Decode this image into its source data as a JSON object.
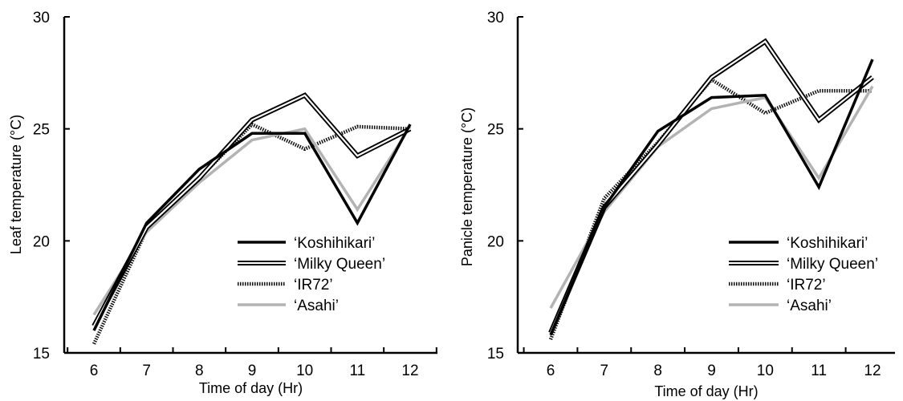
{
  "chart_data": [
    {
      "type": "line",
      "title": "",
      "xlabel": "Time of day (Hr)",
      "ylabel": "Leaf temperature (°C)",
      "x": [
        6,
        7,
        8,
        9,
        10,
        11,
        12
      ],
      "xlim": [
        6,
        12
      ],
      "ylim": [
        15,
        30
      ],
      "yticks": [
        15,
        20,
        25,
        30
      ],
      "grid": false,
      "legend_position": "bottom-right",
      "series": [
        {
          "name": "‘Koshihikari’",
          "style": "solid-black",
          "values": [
            16.0,
            20.8,
            23.2,
            24.8,
            24.8,
            20.8,
            25.2
          ]
        },
        {
          "name": "‘Milky Queen’",
          "style": "double-line",
          "values": [
            16.2,
            20.6,
            22.8,
            25.4,
            26.5,
            23.8,
            25.0
          ]
        },
        {
          "name": "‘IR72’",
          "style": "hatched",
          "values": [
            15.4,
            20.5,
            22.8,
            25.2,
            24.1,
            25.1,
            25.0
          ]
        },
        {
          "name": "‘Asahi’",
          "style": "solid-gray",
          "values": [
            16.7,
            20.4,
            22.6,
            24.5,
            25.0,
            21.4,
            25.1
          ]
        }
      ]
    },
    {
      "type": "line",
      "title": "",
      "xlabel": "Time of day (Hr)",
      "ylabel": "Panicle temperature (°C)",
      "x": [
        6,
        7,
        8,
        9,
        10,
        11,
        12
      ],
      "xlim": [
        6,
        12
      ],
      "ylim": [
        15,
        30
      ],
      "yticks": [
        15,
        20,
        25,
        30
      ],
      "grid": false,
      "legend_position": "bottom-right",
      "series": [
        {
          "name": "‘Koshihikari’",
          "style": "solid-black",
          "values": [
            15.8,
            21.5,
            24.9,
            26.4,
            26.5,
            22.4,
            28.1
          ]
        },
        {
          "name": "‘Milky Queen’",
          "style": "double-line",
          "values": [
            15.9,
            21.5,
            24.3,
            27.3,
            28.9,
            25.4,
            27.3
          ]
        },
        {
          "name": "‘IR72’",
          "style": "hatched",
          "values": [
            15.6,
            21.9,
            24.4,
            27.2,
            25.7,
            26.7,
            26.7
          ]
        },
        {
          "name": "‘Asahi’",
          "style": "solid-gray",
          "values": [
            17.0,
            21.3,
            24.2,
            25.9,
            26.4,
            22.8,
            26.9
          ]
        }
      ]
    }
  ]
}
